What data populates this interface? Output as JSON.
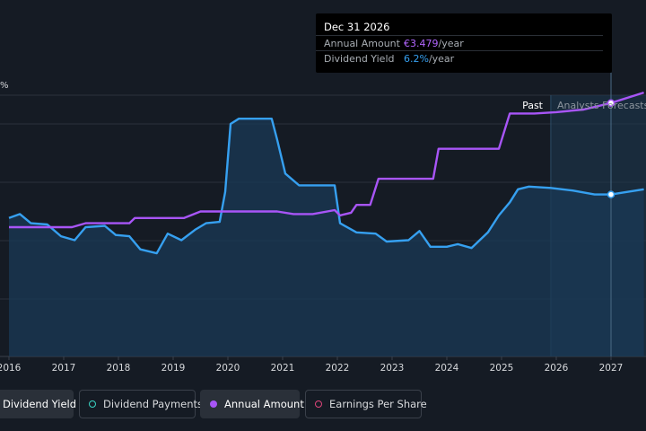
{
  "tooltip": {
    "date": "Dec 31 2026",
    "amount_label": "Annual Amount",
    "amount_value": "€3.479",
    "amount_unit": "/year",
    "yield_label": "Dividend Yield",
    "yield_value": "6.2%",
    "yield_unit": "/year"
  },
  "legend": [
    {
      "label": "Dividend Yield",
      "color": "#36a0f0",
      "active": true
    },
    {
      "label": "Dividend Payments",
      "color": "#3ad6c4",
      "active": false
    },
    {
      "label": "Annual Amount",
      "color": "#a855f7",
      "active": true
    },
    {
      "label": "Earnings Per Share",
      "color": "#e0457b",
      "active": false
    }
  ],
  "chart_data": {
    "type": "line",
    "y_axis_unit": "%",
    "past_label": "Past",
    "forecast_label": "Analysts Forecasts",
    "x_ticks": [
      "2016",
      "2017",
      "2018",
      "2019",
      "2020",
      "2021",
      "2022",
      "2023",
      "2024",
      "2025",
      "2026",
      "2027"
    ],
    "xlim": [
      2016,
      2027.6
    ],
    "ylim": [
      0,
      10
    ],
    "gridlines": true,
    "forecast_start": 2025.9,
    "tooltip_x": 2027.0,
    "series": [
      {
        "name": "Dividend Yield",
        "color": "#36a0f0",
        "fill": true,
        "points": [
          [
            2016.0,
            5.3
          ],
          [
            2016.2,
            5.45
          ],
          [
            2016.4,
            5.1
          ],
          [
            2016.7,
            5.05
          ],
          [
            2016.95,
            4.6
          ],
          [
            2017.2,
            4.45
          ],
          [
            2017.4,
            4.95
          ],
          [
            2017.75,
            5.0
          ],
          [
            2017.95,
            4.65
          ],
          [
            2018.2,
            4.6
          ],
          [
            2018.4,
            4.1
          ],
          [
            2018.7,
            3.95
          ],
          [
            2018.9,
            4.7
          ],
          [
            2019.15,
            4.45
          ],
          [
            2019.4,
            4.85
          ],
          [
            2019.6,
            5.1
          ],
          [
            2019.85,
            5.15
          ],
          [
            2019.95,
            6.3
          ],
          [
            2020.05,
            8.9
          ],
          [
            2020.2,
            9.1
          ],
          [
            2020.8,
            9.1
          ],
          [
            2020.9,
            8.3
          ],
          [
            2021.05,
            7.0
          ],
          [
            2021.3,
            6.55
          ],
          [
            2021.95,
            6.55
          ],
          [
            2022.05,
            5.1
          ],
          [
            2022.35,
            4.75
          ],
          [
            2022.7,
            4.7
          ],
          [
            2022.9,
            4.4
          ],
          [
            2023.3,
            4.45
          ],
          [
            2023.5,
            4.8
          ],
          [
            2023.7,
            4.2
          ],
          [
            2024.0,
            4.2
          ],
          [
            2024.2,
            4.3
          ],
          [
            2024.45,
            4.15
          ],
          [
            2024.75,
            4.75
          ],
          [
            2024.95,
            5.4
          ],
          [
            2025.15,
            5.9
          ],
          [
            2025.3,
            6.4
          ],
          [
            2025.5,
            6.5
          ],
          [
            2025.9,
            6.45
          ],
          [
            2026.3,
            6.35
          ],
          [
            2026.7,
            6.2
          ],
          [
            2027.0,
            6.2
          ],
          [
            2027.3,
            6.3
          ],
          [
            2027.6,
            6.4
          ]
        ]
      },
      {
        "name": "Annual Amount",
        "color": "#a855f7",
        "fill": false,
        "points": [
          [
            2016.0,
            4.95
          ],
          [
            2016.6,
            4.95
          ],
          [
            2017.15,
            4.95
          ],
          [
            2017.4,
            5.1
          ],
          [
            2018.2,
            5.1
          ],
          [
            2018.3,
            5.3
          ],
          [
            2019.2,
            5.3
          ],
          [
            2019.5,
            5.55
          ],
          [
            2020.9,
            5.55
          ],
          [
            2021.2,
            5.45
          ],
          [
            2021.55,
            5.45
          ],
          [
            2021.95,
            5.6
          ],
          [
            2022.05,
            5.4
          ],
          [
            2022.25,
            5.5
          ],
          [
            2022.35,
            5.8
          ],
          [
            2022.6,
            5.8
          ],
          [
            2022.75,
            6.8
          ],
          [
            2023.75,
            6.8
          ],
          [
            2023.85,
            7.95
          ],
          [
            2024.95,
            7.95
          ],
          [
            2025.15,
            9.3
          ],
          [
            2025.6,
            9.3
          ],
          [
            2026.0,
            9.35
          ],
          [
            2026.5,
            9.45
          ],
          [
            2027.0,
            9.7
          ],
          [
            2027.6,
            10.1
          ]
        ]
      }
    ]
  }
}
